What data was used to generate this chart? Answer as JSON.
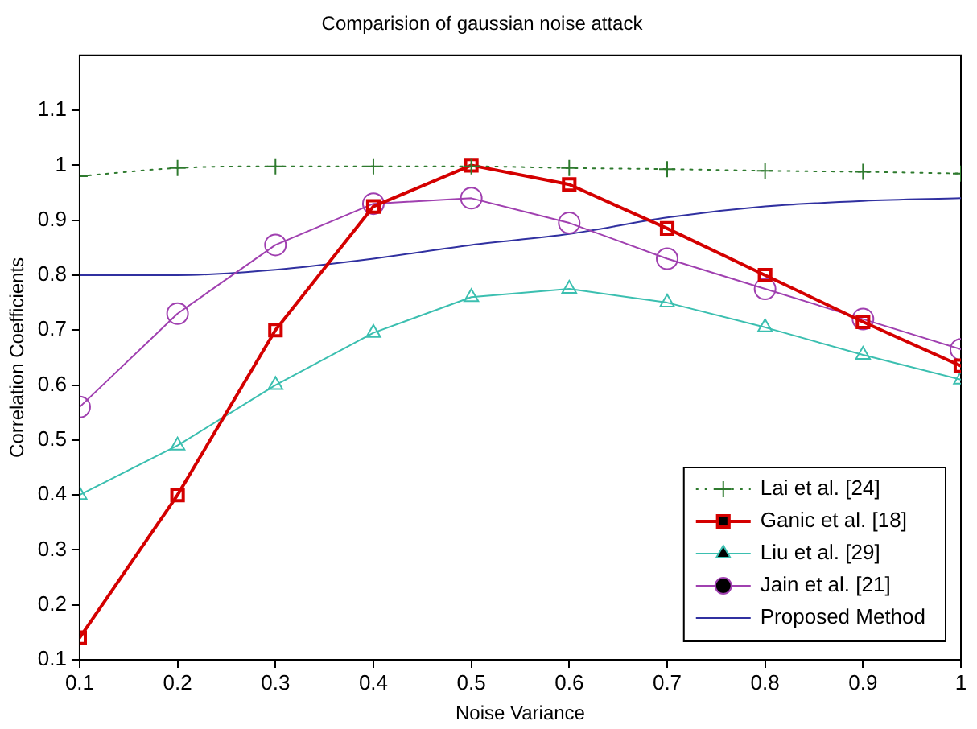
{
  "chart_data": {
    "type": "line",
    "title": "Comparision of gaussian noise attack",
    "xlabel": "Noise Variance",
    "ylabel": "Correlation Coefficients",
    "x": [
      0.1,
      0.2,
      0.3,
      0.4,
      0.5,
      0.6,
      0.7,
      0.8,
      0.9,
      1
    ],
    "xlim": [
      0.1,
      1
    ],
    "xticks": [
      0.1,
      0.2,
      0.3,
      0.4,
      0.5,
      0.6,
      0.7,
      0.8,
      0.9,
      1
    ],
    "ylim": [
      0.1,
      1.2
    ],
    "yticks": [
      0.1,
      0.2,
      0.3,
      0.4,
      0.5,
      0.6,
      0.7,
      0.8,
      0.9,
      1,
      1.1
    ],
    "grid": false,
    "legend": "bottom right",
    "series": [
      {
        "name": "Lai et al. [24]",
        "color": "#2e7a2e",
        "marker": "cross",
        "line_style": "dotted",
        "values": [
          0.98,
          0.995,
          0.998,
          0.998,
          0.998,
          0.995,
          0.993,
          0.99,
          0.988,
          0.985
        ]
      },
      {
        "name": "Ganic et al. [18]",
        "color": "#d40000",
        "marker": "square",
        "line_style": "solid",
        "values": [
          0.14,
          0.4,
          0.7,
          0.925,
          1.0,
          0.965,
          0.885,
          0.8,
          0.715,
          0.635
        ]
      },
      {
        "name": "Liu et al. [29]",
        "color": "#3bbfb0",
        "marker": "triangle",
        "line_style": "solid",
        "values": [
          0.4,
          0.49,
          0.6,
          0.695,
          0.76,
          0.775,
          0.75,
          0.705,
          0.655,
          0.61
        ]
      },
      {
        "name": "Jain et al. [21]",
        "color": "#a040b0",
        "marker": "circle",
        "line_style": "solid",
        "values": [
          0.56,
          0.73,
          0.855,
          0.93,
          0.94,
          0.895,
          0.83,
          0.775,
          0.72,
          0.665
        ]
      },
      {
        "name": "Proposed Method",
        "color": "#3030a0",
        "marker": "none",
        "line_style": "solid",
        "values": [
          0.8,
          0.8,
          0.81,
          0.83,
          0.855,
          0.875,
          0.905,
          0.925,
          0.935,
          0.94
        ]
      }
    ]
  }
}
